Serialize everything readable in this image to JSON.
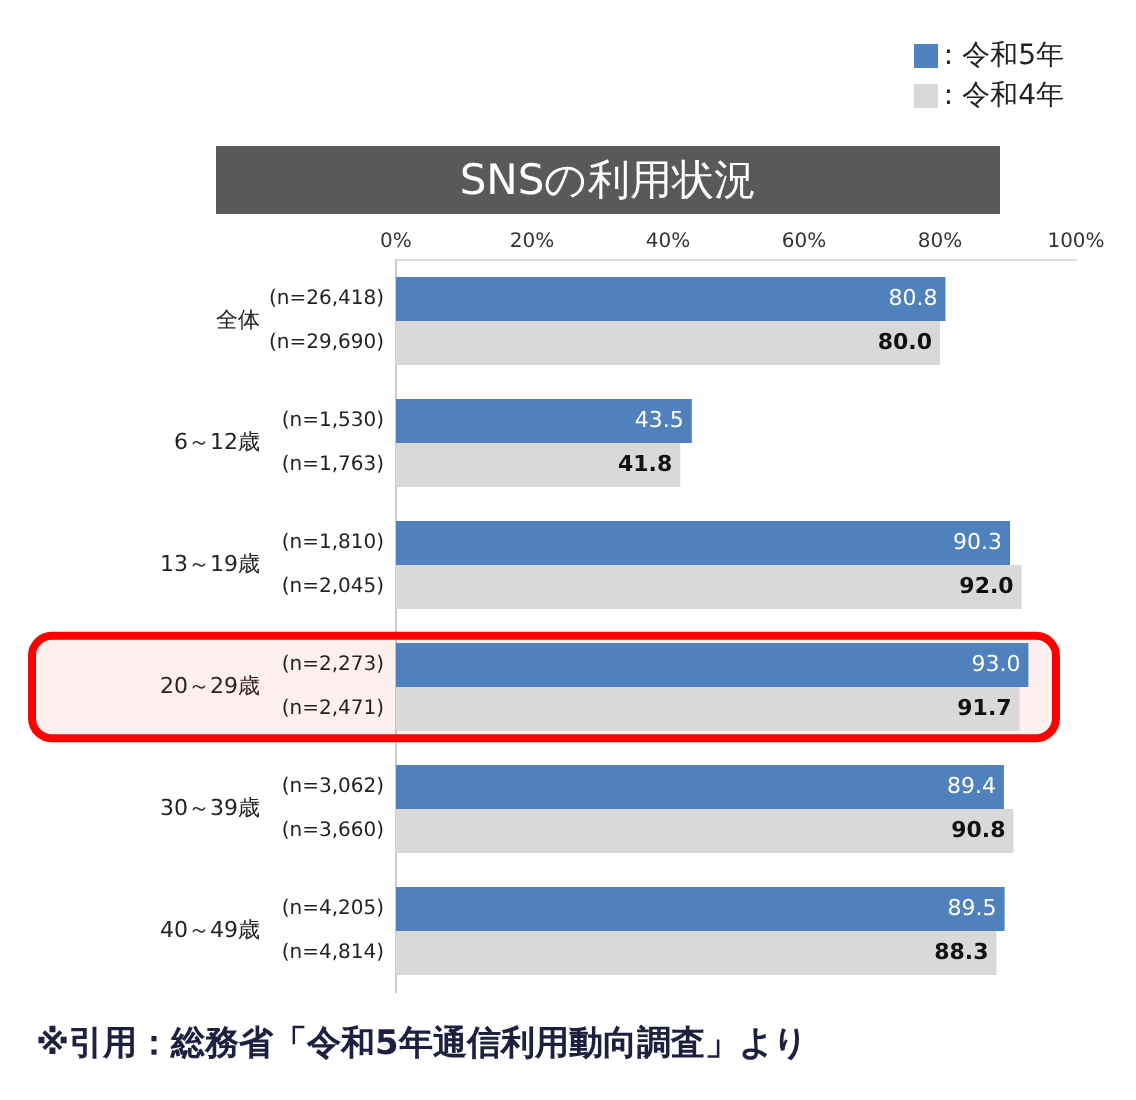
{
  "chart_data": {
    "type": "bar",
    "orientation": "horizontal",
    "title": "SNSの利用状況",
    "categories": [
      "全体",
      "6～12歳",
      "13～19歳",
      "20～29歳",
      "30～39歳",
      "40～49歳"
    ],
    "series": [
      {
        "name": ": 令和5年",
        "color": "#4f81bd",
        "values": [
          80.8,
          43.5,
          90.3,
          93.0,
          89.4,
          89.5
        ],
        "value_labels": [
          "80.8",
          "43.5",
          "90.3",
          "93.0",
          "89.4",
          "89.5"
        ]
      },
      {
        "name": ": 令和4年",
        "color": "#d9d9d9",
        "values": [
          80.0,
          41.8,
          92.0,
          91.7,
          90.8,
          88.3
        ],
        "value_labels": [
          "80.0",
          "41.8",
          "92.0",
          "91.7",
          "90.8",
          "88.3"
        ]
      }
    ],
    "xlim": [
      0,
      100
    ],
    "xticks": [
      {
        "value": 0,
        "label": "0%"
      },
      {
        "value": 20,
        "label": "20%"
      },
      {
        "value": 40,
        "label": "40%"
      },
      {
        "value": 60,
        "label": "60%"
      },
      {
        "value": 80,
        "label": "80%"
      },
      {
        "value": 100,
        "label": "100%"
      }
    ],
    "legend": "top right",
    "bands": [
      {
        "axis": "y",
        "from": "20～29歳",
        "to": "20～29歳",
        "color": "#ff0000"
      }
    ],
    "annotations": [
      "(n=26,418)",
      "(n=29,690)",
      "(n=1,530)",
      "(n=1,763)",
      "(n=1,810)",
      "(n=2,045)",
      "(n=2,273)",
      "(n=2,471)",
      "(n=3,062)",
      "(n=3,660)",
      "(n=4,205)",
      "(n=4,814)",
      "※引用：総務省「令和5年通信利用動向調査」より"
    ]
  }
}
